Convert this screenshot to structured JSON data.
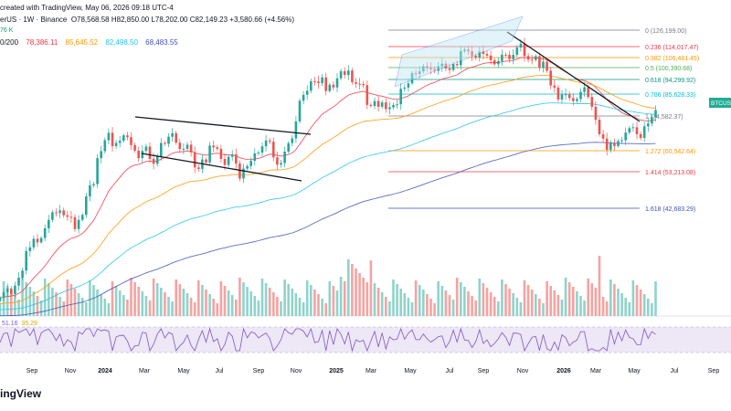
{
  "header": {
    "line1_prefix": "created with TradingView,",
    "timestamp": "May 06, 2026 09:18 UTC-4",
    "symbol": "erUS · 1W · Binance",
    "ohlc": "O78,568.58  H82,850.00  L78,202.00  C82,149.23  +3,580.66 (+4.56%)",
    "volume_fragment": "76 K",
    "ema_label": "0/200",
    "ema_values": [
      "78,386.11",
      "85,645.52",
      "82,498.50",
      "68,483.55"
    ],
    "ema_colors": [
      "#f23645",
      "#ff9800",
      "#22c4e6",
      "#3f51b5"
    ]
  },
  "rsi": {
    "label": "51.16",
    "ma": "35.29",
    "label_color": "#7e57c2",
    "ma_color": "#f5c518"
  },
  "brand": {
    "text": "ingView"
  },
  "symbol_tag": "BTCUSD",
  "colors": {
    "up": "#26a69a",
    "down": "#ef5350",
    "vol_up": "#8fd3cb",
    "vol_down": "#f5a3a1",
    "rsi_band": "#ede7f6",
    "rsi_line": "#7e57c2"
  },
  "chart_data": {
    "type": "candlestick",
    "x_axis": {
      "labels": [
        "Sep",
        "Nov",
        "2024",
        "Mar",
        "May",
        "Jul",
        "Sep",
        "Nov",
        "2025",
        "Mar",
        "May",
        "Jul",
        "Sep",
        "Nov",
        "2026",
        "Mar",
        "May",
        "Jul",
        "Sep"
      ],
      "bold": [
        "2024",
        "2025",
        "2026"
      ]
    },
    "series": [
      {
        "name": "weekly",
        "close": [
          25900,
          26800,
          27400,
          26500,
          27900,
          29300,
          30600,
          34500,
          35300,
          37200,
          36400,
          37400,
          39700,
          41800,
          43800,
          43600,
          44300,
          43000,
          42600,
          42500,
          39500,
          41800,
          43100,
          48300,
          51700,
          52100,
          61100,
          63800,
          68200,
          71400,
          65800,
          67100,
          68000,
          70300,
          69500,
          66200,
          64000,
          61100,
          63900,
          65600,
          60800,
          59000,
          61700,
          67100,
          66700,
          69700,
          71200,
          67200,
          64600,
          64700,
          66400,
          63300,
          57700,
          57200,
          60600,
          59500,
          66000,
          65300,
          64700,
          60800,
          58600,
          61600,
          62500,
          59100,
          53900,
          57300,
          58200,
          60100,
          62900,
          63200,
          65700,
          68100,
          67600,
          61400,
          58700,
          59300,
          63600,
          67000,
          69000,
          76600,
          87000,
          90200,
          92500,
          98000,
          97900,
          96900,
          100400,
          92300,
          96000,
          94400,
          99800,
          104300,
          101900,
          104700,
          97500,
          96500,
          96400,
          95700,
          84800,
          84200,
          86800,
          83800,
          86100,
          82600,
          83500,
          84700,
          85100,
          93600,
          94300,
          96800,
          103000,
          102600,
          104200,
          107500,
          106400,
          105600,
          104600,
          107500,
          109200,
          106100,
          105100,
          109000,
          108200,
          118000,
          119000,
          117900,
          114600,
          113400,
          117800,
          116000,
          114800,
          111600,
          108800,
          111000,
          115400,
          115300,
          112300,
          115300,
          120600,
          123500,
          114500,
          112000,
          111800,
          114400,
          106500,
          110600,
          104600,
          95500,
          94300,
          87600,
          90400,
          90500,
          88400,
          86800,
          87900,
          91800,
          94500,
          89000,
          83800,
          77400,
          70800,
          68900,
          64300,
          67000,
          65800,
          67900,
          68200,
          71500,
          73500,
          73900,
          70800,
          69200,
          74300,
          75600,
          78600,
          82100
        ]
      }
    ],
    "fib_levels": [
      {
        "ratio": "0",
        "price": "126,199.00",
        "color": "#787b86"
      },
      {
        "ratio": "0.236",
        "price": "114,017.47",
        "color": "#f23645"
      },
      {
        "ratio": "0.382",
        "price": "106,481.45",
        "color": "#ff9800"
      },
      {
        "ratio": "0.5",
        "price": "100,390.68",
        "color": "#4caf50"
      },
      {
        "ratio": "0.618",
        "price": "94,299.92",
        "color": "#089981"
      },
      {
        "ratio": "0.786",
        "price": "85,628.33",
        "color": "#00bcd4"
      },
      {
        "ratio": "1",
        "price": "74,582.37",
        "color": "#787b86"
      },
      {
        "ratio": "1.272",
        "price": "60,542.64",
        "color": "#ff9800"
      },
      {
        "ratio": "1.414",
        "price": "53,213.08",
        "color": "#f23645"
      },
      {
        "ratio": "1.618",
        "price": "42,683.29",
        "color": "#3f51b5"
      }
    ],
    "grid": false
  }
}
